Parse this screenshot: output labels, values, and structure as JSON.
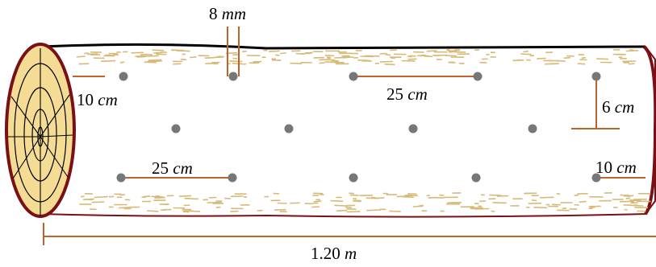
{
  "diagram": {
    "labels": {
      "bit_diameter": {
        "value": "8",
        "unit": "mm"
      },
      "edge_offset_top": {
        "value": "10",
        "unit": "cm"
      },
      "spacing_top": {
        "value": "25",
        "unit": "cm"
      },
      "row_offset": {
        "value": "6",
        "unit": "cm"
      },
      "spacing_bottom": {
        "value": "25",
        "unit": "cm"
      },
      "edge_offset_bottom": {
        "value": "10",
        "unit": "cm"
      },
      "total_length": {
        "value": "1.20",
        "unit": "m"
      }
    },
    "colors": {
      "bark_outline": "#7a0f14",
      "bark_shade": "#d8b977",
      "end_face": "#f4dc95",
      "rings": "#000000",
      "dimension_lines": "#c0622a",
      "holes": "#777777",
      "top_edge": "#000000"
    },
    "hole_rows": [
      {
        "row": "top",
        "count": 5
      },
      {
        "row": "middle",
        "count": 4
      },
      {
        "row": "bottom",
        "count": 5
      }
    ]
  }
}
